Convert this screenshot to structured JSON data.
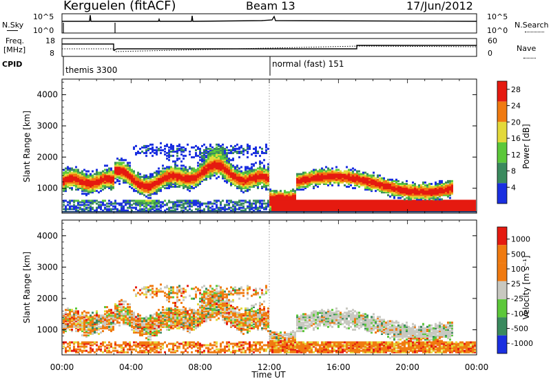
{
  "header": {
    "station": "Kerguelen (fitACF)",
    "beam": "Beam 13",
    "date": "17/Jun/2012"
  },
  "sky_panel": {
    "left_label": "N.Sky",
    "right_label": "N.Search",
    "left_ticks": [
      "10^5",
      "10^0"
    ],
    "right_ticks": [
      "10^5",
      "10^0"
    ]
  },
  "freq_panel": {
    "left_label_line1": "Freq.",
    "left_label_line2": "[MHz]",
    "left_ticks": [
      "18",
      "8"
    ],
    "right_ticks": [
      "60",
      "0"
    ],
    "right_label": "Nave",
    "cpid_label": "CPID",
    "cpid_entries": [
      "themis 3300",
      "normal (fast) 151"
    ]
  },
  "colors": {
    "blue": "#1a2fe0",
    "dark_green": "#3a8a5e",
    "green": "#5cc83a",
    "yellow": "#e3d93a",
    "orange": "#f07a10",
    "red": "#e51a10",
    "grey": "#c8c8c0"
  },
  "chart_data": [
    {
      "type": "heatmap",
      "parameter": "power",
      "ylabel": "Slant Range [km]",
      "xlabel": "",
      "yticks": [
        "1000",
        "2000",
        "3000",
        "4000"
      ],
      "ylim": [
        200,
        4500
      ],
      "xlim": [
        "00:00",
        "24:00"
      ],
      "colorbar": {
        "label": "Power [dB]",
        "ticks": [
          "4",
          "8",
          "12",
          "16",
          "20",
          "24",
          "28"
        ],
        "colors": [
          "#1a2fe0",
          "#3a8a5e",
          "#5cc83a",
          "#e3d93a",
          "#f07a10",
          "#e51a10"
        ]
      }
    },
    {
      "type": "heatmap",
      "parameter": "velocity",
      "ylabel": "Slant Range [km]",
      "xlabel": "Time UT",
      "yticks": [
        "1000",
        "2000",
        "3000",
        "4000"
      ],
      "xticks": [
        "00:00",
        "04:00",
        "08:00",
        "12:00",
        "16:00",
        "20:00",
        "00:00"
      ],
      "ylim": [
        200,
        4500
      ],
      "xlim": [
        "00:00",
        "24:00"
      ],
      "colorbar": {
        "label": "Velocity [m s⁻¹]",
        "ticks": [
          "1000",
          "500",
          "100",
          "25",
          "-25",
          "-100",
          "-500",
          "-1000"
        ],
        "colors": [
          "#1a2fe0",
          "#3a8a5e",
          "#5cc83a",
          "#c8c8c0",
          "#f07a10",
          "#f07a10",
          "#e51a10"
        ]
      }
    }
  ]
}
